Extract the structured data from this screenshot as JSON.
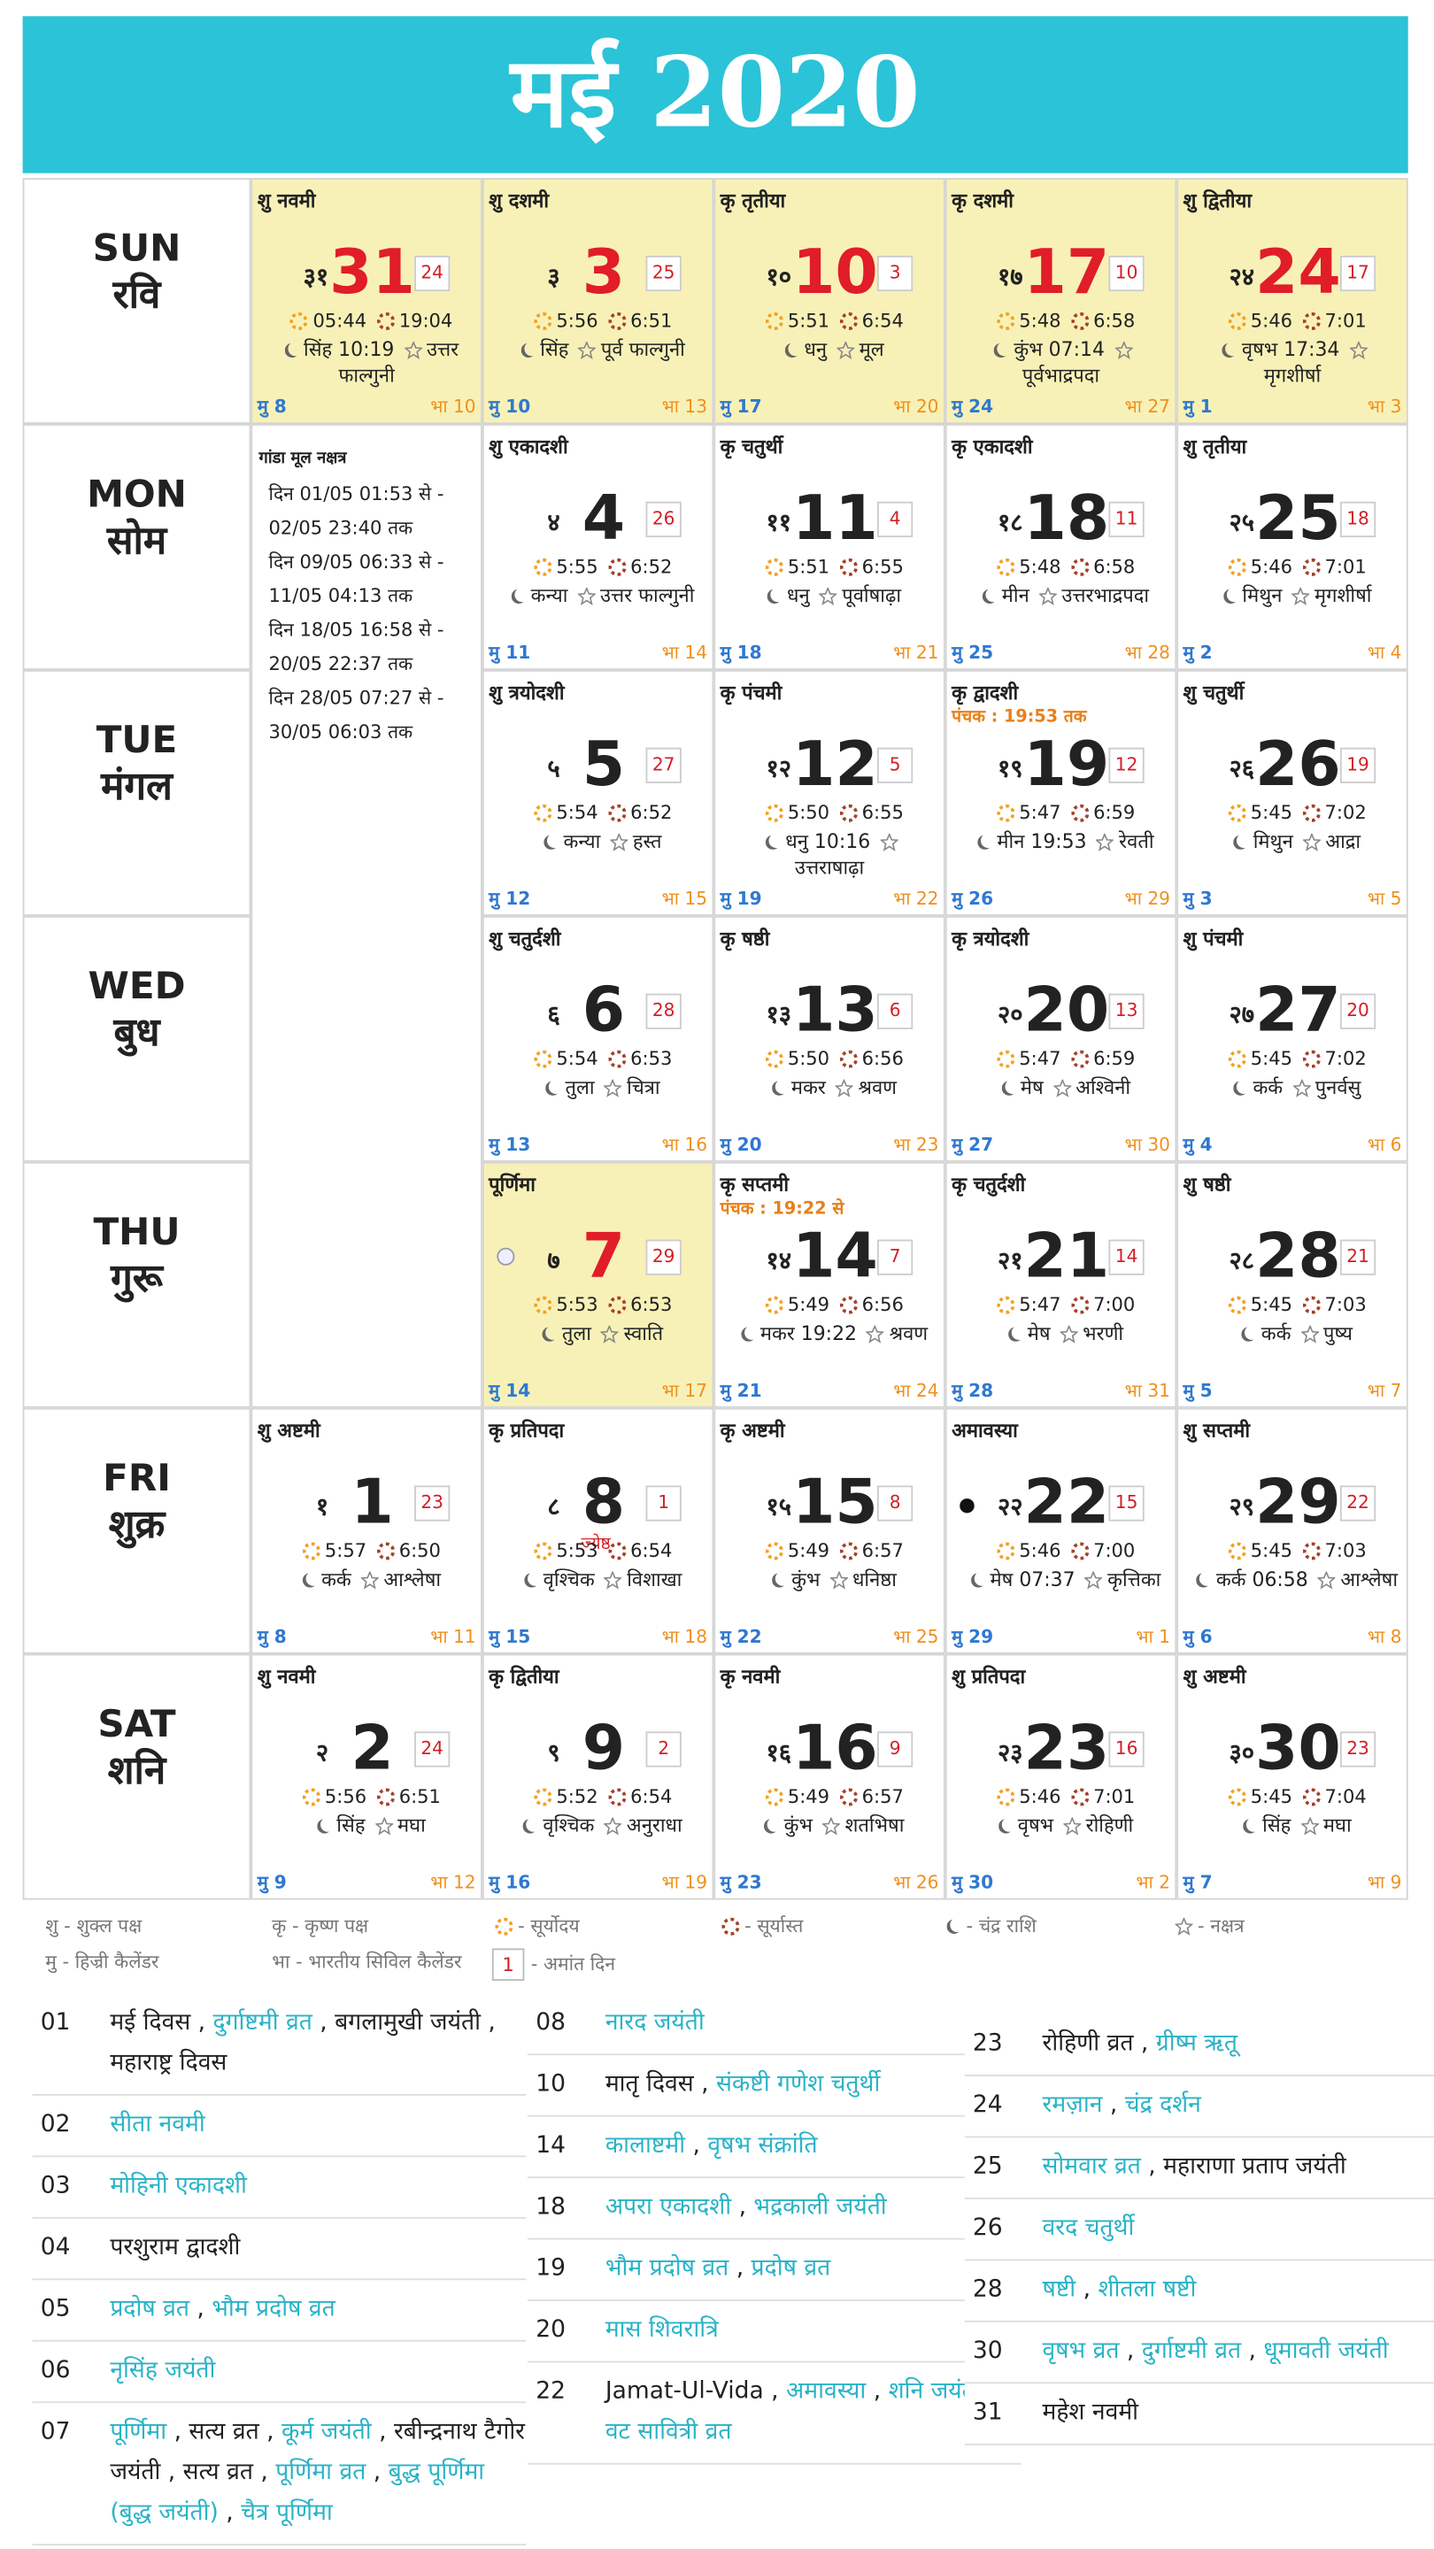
{
  "title": "मई 2020",
  "calendar": {
    "weekdays": [
      {
        "en": "SUN",
        "hi": "रवि"
      },
      {
        "en": "MON",
        "hi": "सोम"
      },
      {
        "en": "TUE",
        "hi": "मंगल"
      },
      {
        "en": "WED",
        "hi": "बुध"
      },
      {
        "en": "THU",
        "hi": "गुरू"
      },
      {
        "en": "FRI",
        "hi": "शुक्र"
      },
      {
        "en": "SAT",
        "hi": "शनि"
      }
    ],
    "rows": [
      [
        {
          "tithi": "शु नवमी",
          "hindi_date": "३१",
          "date": 31,
          "amant": 24,
          "sunrise": "05:44",
          "sunset": "19:04",
          "rashi": "सिंह 10:19",
          "nakshatra": "उत्तर फाल्गुनी",
          "hijri": "मु 8",
          "bharatiya": "भा 10",
          "highlight": true
        },
        {
          "tithi": "शु दशमी",
          "hindi_date": "३",
          "date": 3,
          "amant": 25,
          "sunrise": "5:56",
          "sunset": "6:51",
          "rashi": "सिंह",
          "nakshatra": "पूर्व फाल्गुनी",
          "hijri": "मु 10",
          "bharatiya": "भा 13",
          "highlight": true
        },
        {
          "tithi": "कृ तृतीया",
          "hindi_date": "१०",
          "date": 10,
          "amant": 3,
          "sunrise": "5:51",
          "sunset": "6:54",
          "rashi": "धनु",
          "nakshatra": "मूल",
          "hijri": "मु 17",
          "bharatiya": "भा 20",
          "highlight": true
        },
        {
          "tithi": "कृ दशमी",
          "hindi_date": "१७",
          "date": 17,
          "amant": 10,
          "sunrise": "5:48",
          "sunset": "6:58",
          "rashi": "कुंभ 07:14",
          "nakshatra": "पूर्वभाद्रपदा",
          "hijri": "मु 24",
          "bharatiya": "भा 27",
          "highlight": true
        },
        {
          "tithi": "शु द्वितीया",
          "hindi_date": "२४",
          "date": 24,
          "amant": 17,
          "sunrise": "5:46",
          "sunset": "7:01",
          "rashi": "वृषभ 17:34",
          "nakshatra": "मृगशीर्षा",
          "hijri": "मु 1",
          "bharatiya": "भा 3",
          "highlight": true
        }
      ],
      [
        null,
        {
          "tithi": "शु एकादशी",
          "hindi_date": "४",
          "date": 4,
          "amant": 26,
          "sunrise": "5:55",
          "sunset": "6:52",
          "rashi": "कन्या",
          "nakshatra": "उत्तर फाल्गुनी",
          "hijri": "मु 11",
          "bharatiya": "भा 14"
        },
        {
          "tithi": "कृ चतुर्थी",
          "hindi_date": "११",
          "date": 11,
          "amant": 4,
          "sunrise": "5:51",
          "sunset": "6:55",
          "rashi": "धनु",
          "nakshatra": "पूर्वाषाढ़ा",
          "hijri": "मु 18",
          "bharatiya": "भा 21"
        },
        {
          "tithi": "कृ एकादशी",
          "hindi_date": "१८",
          "date": 18,
          "amant": 11,
          "sunrise": "5:48",
          "sunset": "6:58",
          "rashi": "मीन",
          "nakshatra": "उत्तरभाद्रपदा",
          "hijri": "मु 25",
          "bharatiya": "भा 28"
        },
        {
          "tithi": "शु तृतीया",
          "hindi_date": "२५",
          "date": 25,
          "amant": 18,
          "sunrise": "5:46",
          "sunset": "7:01",
          "rashi": "मिथुन",
          "nakshatra": "मृगशीर्षा",
          "hijri": "मु 2",
          "bharatiya": "भा 4"
        }
      ],
      [
        null,
        {
          "tithi": "शु त्रयोदशी",
          "hindi_date": "५",
          "date": 5,
          "amant": 27,
          "sunrise": "5:54",
          "sunset": "6:52",
          "rashi": "कन्या",
          "nakshatra": "हस्त",
          "hijri": "मु 12",
          "bharatiya": "भा 15"
        },
        {
          "tithi": "कृ पंचमी",
          "hindi_date": "१२",
          "date": 12,
          "amant": 5,
          "sunrise": "5:50",
          "sunset": "6:55",
          "rashi": "धनु 10:16",
          "nakshatra": "उत्तराषाढ़ा",
          "hijri": "मु 19",
          "bharatiya": "भा 22"
        },
        {
          "tithi": "कृ द्वादशी",
          "note": "पंचक : 19:53 तक",
          "hindi_date": "१९",
          "date": 19,
          "amant": 12,
          "sunrise": "5:47",
          "sunset": "6:59",
          "rashi": "मीन 19:53",
          "nakshatra": "रेवती",
          "hijri": "मु 26",
          "bharatiya": "भा 29"
        },
        {
          "tithi": "शु चतुर्थी",
          "hindi_date": "२६",
          "date": 26,
          "amant": 19,
          "sunrise": "5:45",
          "sunset": "7:02",
          "rashi": "मिथुन",
          "nakshatra": "आद्रा",
          "hijri": "मु 3",
          "bharatiya": "भा 5"
        }
      ],
      [
        null,
        {
          "tithi": "शु चतुर्दशी",
          "hindi_date": "६",
          "date": 6,
          "amant": 28,
          "sunrise": "5:54",
          "sunset": "6:53",
          "rashi": "तुला",
          "nakshatra": "चित्रा",
          "hijri": "मु 13",
          "bharatiya": "भा 16"
        },
        {
          "tithi": "कृ षष्ठी",
          "hindi_date": "१३",
          "date": 13,
          "amant": 6,
          "sunrise": "5:50",
          "sunset": "6:56",
          "rashi": "मकर",
          "nakshatra": "श्रवण",
          "hijri": "मु 20",
          "bharatiya": "भा 23"
        },
        {
          "tithi": "कृ त्रयोदशी",
          "hindi_date": "२०",
          "date": 20,
          "amant": 13,
          "sunrise": "5:47",
          "sunset": "6:59",
          "rashi": "मेष",
          "nakshatra": "अश्विनी",
          "hijri": "मु 27",
          "bharatiya": "भा 30"
        },
        {
          "tithi": "शु पंचमी",
          "hindi_date": "२७",
          "date": 27,
          "amant": 20,
          "sunrise": "5:45",
          "sunset": "7:02",
          "rashi": "कर्क",
          "nakshatra": "पुनर्वसु",
          "hijri": "मु 4",
          "bharatiya": "भा 6"
        }
      ],
      [
        null,
        {
          "tithi": "पूर्णिमा",
          "hindi_date": "७",
          "date": 7,
          "amant": 29,
          "sunrise": "5:53",
          "sunset": "6:53",
          "rashi": "तुला",
          "nakshatra": "स्वाति",
          "hijri": "मु 14",
          "bharatiya": "भा 17",
          "highlight": true
        },
        {
          "tithi": "कृ सप्तमी",
          "note": "पंचक : 19:22 से",
          "hindi_date": "१४",
          "date": 14,
          "amant": 7,
          "sunrise": "5:49",
          "sunset": "6:56",
          "rashi": "मकर 19:22",
          "nakshatra": "श्रवण",
          "hijri": "मु 21",
          "bharatiya": "भा 24"
        },
        {
          "tithi": "कृ चतुर्दशी",
          "hindi_date": "२१",
          "date": 21,
          "amant": 14,
          "sunrise": "5:47",
          "sunset": "7:00",
          "rashi": "मेष",
          "nakshatra": "भरणी",
          "hijri": "मु 28",
          "bharatiya": "भा 31"
        },
        {
          "tithi": "शु षष्ठी",
          "hindi_date": "२८",
          "date": 28,
          "amant": 21,
          "sunrise": "5:45",
          "sunset": "7:03",
          "rashi": "कर्क",
          "nakshatra": "पुष्य",
          "hijri": "मु 5",
          "bharatiya": "भा 7"
        }
      ],
      [
        {
          "tithi": "शु अष्टमी",
          "hindi_date": "१",
          "date": 1,
          "amant": 23,
          "sunrise": "5:57",
          "sunset": "6:50",
          "rashi": "कर्क",
          "nakshatra": "आश्लेषा",
          "hijri": "मु 8",
          "bharatiya": "भा 11"
        },
        {
          "tithi": "कृ प्रतिपदा",
          "hindi_date": "८",
          "date": 8,
          "amant": 1,
          "month_label": "ज्येष्ठ",
          "sunrise": "5:53",
          "sunset": "6:54",
          "rashi": "वृश्चिक",
          "nakshatra": "विशाखा",
          "hijri": "मु 15",
          "bharatiya": "भा 18"
        },
        {
          "tithi": "कृ अष्टमी",
          "hindi_date": "१५",
          "date": 15,
          "amant": 8,
          "sunrise": "5:49",
          "sunset": "6:57",
          "rashi": "कुंभ",
          "nakshatra": "धनिष्ठा",
          "hijri": "मु 22",
          "bharatiya": "भा 25"
        },
        {
          "tithi": "अमावस्या",
          "hindi_date": "२२",
          "date": 22,
          "amant": 15,
          "sunrise": "5:46",
          "sunset": "7:00",
          "rashi": "मेष 07:37",
          "nakshatra": "कृत्तिका",
          "hijri": "मु 29",
          "bharatiya": "भा 1"
        },
        {
          "tithi": "शु सप्तमी",
          "hindi_date": "२९",
          "date": 29,
          "amant": 22,
          "sunrise": "5:45",
          "sunset": "7:03",
          "rashi": "कर्क 06:58",
          "nakshatra": "आश्लेषा",
          "hijri": "मु 6",
          "bharatiya": "भा 8"
        }
      ],
      [
        {
          "tithi": "शु नवमी",
          "hindi_date": "२",
          "date": 2,
          "amant": 24,
          "sunrise": "5:56",
          "sunset": "6:51",
          "rashi": "सिंह",
          "nakshatra": "मघा",
          "hijri": "मु 9",
          "bharatiya": "भा 12"
        },
        {
          "tithi": "कृ द्वितीया",
          "hindi_date": "९",
          "date": 9,
          "amant": 2,
          "sunrise": "5:52",
          "sunset": "6:54",
          "rashi": "वृश्चिक",
          "nakshatra": "अनुराधा",
          "hijri": "मु 16",
          "bharatiya": "भा 19"
        },
        {
          "tithi": "कृ नवमी",
          "hindi_date": "१६",
          "date": 16,
          "amant": 9,
          "sunrise": "5:49",
          "sunset": "6:57",
          "rashi": "कुंभ",
          "nakshatra": "शतभिषा",
          "hijri": "मु 23",
          "bharatiya": "भा 26"
        },
        {
          "tithi": "शु प्रतिपदा",
          "hindi_date": "२३",
          "date": 23,
          "amant": 16,
          "sunrise": "5:46",
          "sunset": "7:01",
          "rashi": "वृषभ",
          "nakshatra": "रोहिणी",
          "hijri": "मु 30",
          "bharatiya": "भा 2"
        },
        {
          "tithi": "शु अष्टमी",
          "hindi_date": "३०",
          "date": 30,
          "amant": 23,
          "sunrise": "5:45",
          "sunset": "7:04",
          "rashi": "सिंह",
          "nakshatra": "मघा",
          "hijri": "मु 7",
          "bharatiya": "भा 9"
        }
      ]
    ]
  },
  "gandamool": {
    "title": "गांडा मूल नक्षत्र",
    "lines": [
      "दिन 01/05 01:53 से - 02/05 23:40 तक",
      "दिन 09/05 06:33 से - 11/05 04:13 तक",
      "दिन 18/05 16:58 से - 20/05 22:37 तक",
      "दिन 28/05 07:27 से - 30/05 06:03 तक"
    ]
  },
  "legend": [
    {
      "text": "शु - शुक्ल पक्ष"
    },
    {
      "text": "कृ - कृष्ण पक्ष"
    },
    {
      "text": "- सूर्योदय"
    },
    {
      "text": "- सूर्यास्त"
    },
    {
      "text": "- चंद्र राशि"
    },
    {
      "text": "- नक्षत्र"
    },
    {
      "text": "मु - हिज्री कैलेंडर"
    },
    {
      "text": "भा - भारतीय सिविल कैलेंडर"
    },
    {
      "box": "1",
      "text": "- अमांत दिन"
    }
  ],
  "festivals": {
    "separator": ",",
    "columns": [
      [
        {
          "day": "01",
          "items": [
            {
              "text": "मई दिवस"
            },
            {
              "text": "दुर्गाष्टमी व्रत",
              "link": true
            },
            {
              "text": "बगलामुखी जयंती"
            },
            {
              "text": "महाराष्ट्र दिवस"
            }
          ]
        },
        {
          "day": "02",
          "items": [
            {
              "text": "सीता नवमी",
              "link": true
            }
          ]
        },
        {
          "day": "03",
          "items": [
            {
              "text": "मोहिनी एकादशी",
              "link": true
            }
          ]
        },
        {
          "day": "04",
          "items": [
            {
              "text": "परशुराम द्वादशी"
            }
          ]
        },
        {
          "day": "05",
          "items": [
            {
              "text": "प्रदोष व्रत",
              "link": true
            },
            {
              "text": "भौम प्रदोष व्रत",
              "link": true
            }
          ]
        },
        {
          "day": "06",
          "items": [
            {
              "text": "नृसिंह जयंती",
              "link": true
            }
          ]
        },
        {
          "day": "07",
          "items": [
            {
              "text": "पूर्णिमा",
              "link": true
            },
            {
              "text": "सत्य व्रत"
            },
            {
              "text": "कूर्म जयंती",
              "link": true
            },
            {
              "text": "रबीन्द्रनाथ टैगोर जयंती"
            },
            {
              "text": "सत्य व्रत"
            },
            {
              "text": "पूर्णिमा व्रत",
              "link": true
            },
            {
              "text": "बुद्ध पूर्णिमा (बुद्ध जयंती)",
              "link": true
            },
            {
              "text": "चैत्र पूर्णिमा",
              "link": true
            }
          ]
        }
      ],
      [
        {
          "day": "08",
          "items": [
            {
              "text": "नारद जयंती",
              "link": true
            }
          ]
        },
        {
          "day": "10",
          "items": [
            {
              "text": "मातृ दिवस"
            },
            {
              "text": "संकष्टी गणेश चतुर्थी",
              "link": true
            }
          ]
        },
        {
          "day": "14",
          "items": [
            {
              "text": "कालाष्टमी",
              "link": true
            },
            {
              "text": "वृषभ संक्रांति",
              "link": true
            }
          ]
        },
        {
          "day": "18",
          "items": [
            {
              "text": "अपरा एकादशी",
              "link": true
            },
            {
              "text": "भद्रकाली जयंती",
              "link": true
            }
          ]
        },
        {
          "day": "19",
          "items": [
            {
              "text": "भौम प्रदोष व्रत",
              "link": true
            },
            {
              "text": "प्रदोष व्रत",
              "link": true
            }
          ]
        },
        {
          "day": "20",
          "items": [
            {
              "text": "मास शिवरात्रि",
              "link": true
            }
          ]
        },
        {
          "day": "22",
          "items": [
            {
              "text": "Jamat-Ul-Vida"
            },
            {
              "text": "अमावस्या",
              "link": true
            },
            {
              "text": "शनि जयंती",
              "link": true
            },
            {
              "text": "वट सावित्री व्रत",
              "link": true
            }
          ]
        }
      ],
      [
        {
          "day": "23",
          "items": [
            {
              "text": "रोहिणी व्रत"
            },
            {
              "text": "ग्रीष्म ऋतू",
              "link": true
            }
          ]
        },
        {
          "day": "24",
          "items": [
            {
              "text": "रमज़ान",
              "link": true
            },
            {
              "text": "चंद्र दर्शन",
              "link": true
            }
          ]
        },
        {
          "day": "25",
          "items": [
            {
              "text": "सोमवार व्रत",
              "link": true
            },
            {
              "text": "महाराणा प्रताप जयंती"
            }
          ]
        },
        {
          "day": "26",
          "items": [
            {
              "text": "वरद चतुर्थी",
              "link": true
            }
          ]
        },
        {
          "day": "28",
          "items": [
            {
              "text": "षष्टी",
              "link": true
            },
            {
              "text": "शीतला षष्टी",
              "link": true
            }
          ]
        },
        {
          "day": "30",
          "items": [
            {
              "text": "वृषभ व्रत",
              "link": true
            },
            {
              "text": "दुर्गाष्टमी व्रत",
              "link": true
            },
            {
              "text": "धूमावती जयंती",
              "link": true
            }
          ]
        },
        {
          "day": "31",
          "items": [
            {
              "text": "महेश नवमी"
            }
          ]
        }
      ]
    ]
  }
}
